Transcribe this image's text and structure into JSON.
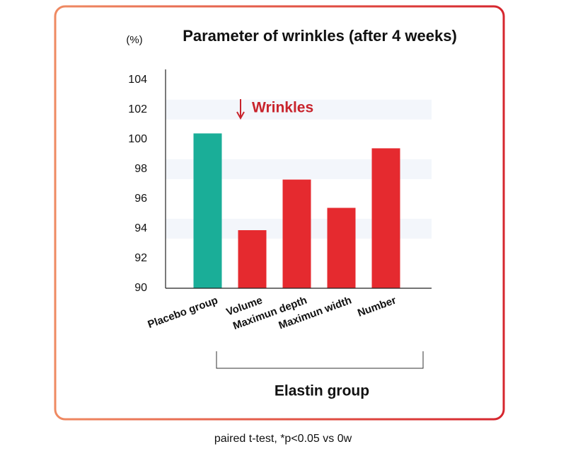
{
  "chart_data": {
    "type": "bar",
    "title": "Parameter of wrinkles (after 4 weeks)",
    "y_label": "(%)",
    "annotation": "Wrinkles",
    "group_label": "Elastin group",
    "footnote": "paired t-test, *p<0.05 vs 0w",
    "categories": [
      "Placebo group",
      "Volume",
      "Maximun depth",
      "Maximun width",
      "Number"
    ],
    "values": [
      100.4,
      93.9,
      97.3,
      95.4,
      99.4
    ],
    "colors": [
      "#1aae98",
      "#e52a2f",
      "#e52a2f",
      "#e52a2f",
      "#e52a2f"
    ],
    "ylim": [
      90,
      104.7
    ],
    "yticks": [
      90,
      92,
      94,
      96,
      98,
      100,
      102,
      104
    ]
  }
}
